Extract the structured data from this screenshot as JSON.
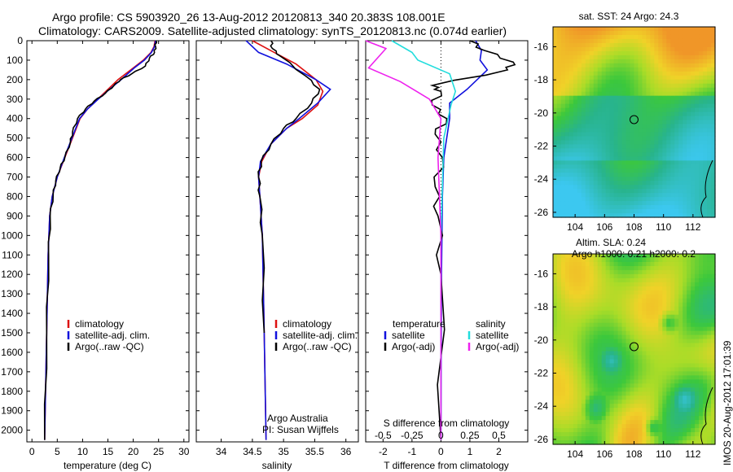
{
  "title_line1": "Argo profile: CS 5903920_26 13-Aug-2012 20120813_340 20.383S 108.001E",
  "title_line2": "Climatology: CARS2009. Satellite-adjusted climatology: synTS_20120813.nc (0.074d earlier)",
  "credits": "IMOS 20-Aug-2012 17:01:39",
  "colors": {
    "climatology": "#dd1111",
    "satellite": "#1111dd",
    "argo": "#000000",
    "sal_sat": "#22dddd",
    "sal_argo": "#ee22ee"
  },
  "chart_data": [
    {
      "type": "line",
      "xlabel": "temperature (deg C)",
      "ylabel": "",
      "xlim": [
        -1,
        31
      ],
      "ylim": [
        2060,
        0
      ],
      "xticks": [
        "0",
        "5",
        "10",
        "15",
        "20",
        "25",
        "30"
      ],
      "yticks": [
        "0",
        "100",
        "200",
        "300",
        "400",
        "500",
        "600",
        "700",
        "800",
        "900",
        "1000",
        "1100",
        "1200",
        "1300",
        "1400",
        "1500",
        "1600",
        "1700",
        "1800",
        "1900",
        "2000"
      ],
      "legend": [
        "climatology",
        "satellite-adj. clim.",
        "Argo(..raw -QC)"
      ],
      "legend_position": "lower-center",
      "series": [
        {
          "name": "climatology",
          "color_key": "climatology",
          "x": [
            24.3,
            24.1,
            23.5,
            22,
            20,
            17,
            15,
            13,
            11,
            9.5,
            8,
            6.5,
            5,
            4,
            3.5,
            3.2,
            2.9,
            2.5
          ],
          "y": [
            0,
            30,
            60,
            100,
            140,
            200,
            250,
            300,
            350,
            400,
            500,
            600,
            700,
            800,
            900,
            1100,
            1500,
            2050
          ]
        },
        {
          "name": "satellite-adj. clim.",
          "color_key": "satellite",
          "x": [
            24.4,
            24.2,
            23.6,
            22.2,
            20.2,
            17.6,
            15.3,
            13.1,
            11,
            9.4,
            7.9,
            6.4,
            5,
            4,
            3.5,
            3.2,
            2.9,
            2.5
          ],
          "y": [
            0,
            30,
            60,
            100,
            140,
            200,
            250,
            300,
            350,
            400,
            500,
            600,
            700,
            800,
            900,
            1100,
            1500,
            2050
          ]
        },
        {
          "name": "Argo(..raw -QC)",
          "color_key": "argo",
          "x": [
            24.5,
            24.4,
            24.2,
            23.2,
            22.4,
            19.7,
            17.5,
            16.2,
            14.5,
            12.3,
            10.6,
            9,
            8,
            7.6,
            6.5,
            5.6,
            4.7,
            4.2,
            3.6,
            3.3,
            2.9,
            2.5
          ],
          "y": [
            0,
            30,
            60,
            90,
            130,
            170,
            200,
            230,
            270,
            310,
            350,
            400,
            470,
            520,
            600,
            650,
            720,
            790,
            900,
            1100,
            1500,
            2050
          ]
        }
      ]
    },
    {
      "type": "line",
      "xlabel": "salinity",
      "ylabel": "",
      "xlim": [
        33.6,
        36.2
      ],
      "ylim": [
        2060,
        0
      ],
      "xticks": [
        "34",
        "34.5",
        "35",
        "35.5",
        "36"
      ],
      "legend": [
        "climatology",
        "satellite-adj. clim.",
        "Argo(..raw -QC)"
      ],
      "legend_position": "lower-center",
      "annotations": [
        "Argo Australia",
        "PI: Susan Wijffels"
      ],
      "series": [
        {
          "name": "climatology",
          "color_key": "climatology",
          "x": [
            34.5,
            34.85,
            35.2,
            35.52,
            35.63,
            35.55,
            35.3,
            35.05,
            34.8,
            34.65,
            34.6,
            34.62,
            34.66,
            34.69,
            34.72
          ],
          "y": [
            0,
            60,
            120,
            200,
            260,
            330,
            400,
            450,
            530,
            620,
            700,
            800,
            1000,
            1500,
            2050
          ]
        },
        {
          "name": "satellite-adj. clim.",
          "color_key": "satellite",
          "x": [
            34.4,
            34.6,
            35.05,
            35.52,
            35.75,
            35.55,
            35.25,
            35.05,
            34.8,
            34.63,
            34.6,
            34.62,
            34.66,
            34.69,
            34.72
          ],
          "y": [
            0,
            60,
            120,
            200,
            250,
            320,
            400,
            450,
            530,
            620,
            700,
            800,
            1000,
            1500,
            2050
          ]
        },
        {
          "name": "Argo(..raw -QC)",
          "color_key": "argo",
          "x": [
            34.8,
            34.82,
            34.95,
            35.35,
            35.58,
            35.45,
            35.2,
            35.0,
            34.8,
            34.64,
            34.6,
            34.62,
            34.66,
            34.69
          ],
          "y": [
            0,
            40,
            80,
            180,
            250,
            320,
            400,
            450,
            530,
            620,
            700,
            800,
            1000,
            1500
          ]
        }
      ]
    },
    {
      "type": "line",
      "xlabel": "T difference from climatology",
      "ylabel": "",
      "top_axis_label": "S difference from climatology",
      "xlim": [
        -2.6,
        3.0
      ],
      "ylim": [
        2060,
        0
      ],
      "xticks": [
        "-2",
        "-1",
        "0",
        "1",
        "2"
      ],
      "top_xticks": [
        "-0.5",
        "-0.25",
        "0",
        "0.25",
        "0.5"
      ],
      "legend": [
        "temperature",
        "satellite",
        "Argo(-adj)",
        "salinity",
        "satellite",
        "Argo(-adj)"
      ],
      "legend_position": "lower-center",
      "series": [
        {
          "name": "satellite",
          "color_key": "satellite",
          "x": [
            1.2,
            1.4,
            1.35,
            1.6,
            0.9,
            0.3,
            0.3,
            0.1,
            0.05,
            0.02,
            0
          ],
          "y": [
            0,
            50,
            100,
            150,
            250,
            320,
            400,
            600,
            800,
            1200,
            2050
          ]
        },
        {
          "name": "Argo(-adj)",
          "color_key": "argo",
          "x": [
            1.0,
            1.5,
            2.5,
            2.3,
            -0.3,
            0,
            -0.3,
            0.2,
            -0.2,
            0.05,
            -0.2,
            -0.1,
            0,
            0
          ],
          "y": [
            0,
            50,
            110,
            150,
            230,
            260,
            330,
            400,
            480,
            600,
            750,
            900,
            1200,
            2050
          ]
        },
        {
          "name": "satellite",
          "color_key": "sal_sat",
          "x": [
            -1.7,
            -1.0,
            -0.8,
            0.3,
            0.5,
            0.35,
            0.1,
            0,
            0
          ],
          "y": [
            0,
            60,
            100,
            170,
            260,
            330,
            500,
            1000,
            2050
          ]
        },
        {
          "name": "Argo(-adj)",
          "color_key": "sal_argo",
          "x": [
            -2.6,
            -1.9,
            -2.5,
            -1.4,
            -0.4,
            0,
            -0.1,
            0,
            0
          ],
          "y": [
            0,
            40,
            140,
            210,
            300,
            400,
            600,
            1000,
            2050
          ]
        }
      ]
    },
    {
      "type": "heatmap",
      "title": "sat. SST: 24 Argo: 24.3",
      "xlim": [
        102.5,
        113.5
      ],
      "ylim": [
        -26.3,
        -14.8
      ],
      "xticks": [
        "104",
        "106",
        "108",
        "110",
        "112"
      ],
      "yticks": [
        "-16",
        "-18",
        "-20",
        "-22",
        "-24",
        "-26"
      ],
      "marker": {
        "lon": 108.0,
        "lat": -20.4
      }
    },
    {
      "type": "heatmap",
      "title": "Altim. SLA: 0.24",
      "subtitle": "Argo h1000: 0.21 h2000: 0.2",
      "xlim": [
        102.5,
        113.5
      ],
      "ylim": [
        -26.3,
        -14.8
      ],
      "xticks": [
        "104",
        "106",
        "108",
        "110",
        "112"
      ],
      "yticks": [
        "-16",
        "-18",
        "-20",
        "-22",
        "-24",
        "-26"
      ],
      "marker": {
        "lon": 108.0,
        "lat": -20.4
      }
    }
  ]
}
